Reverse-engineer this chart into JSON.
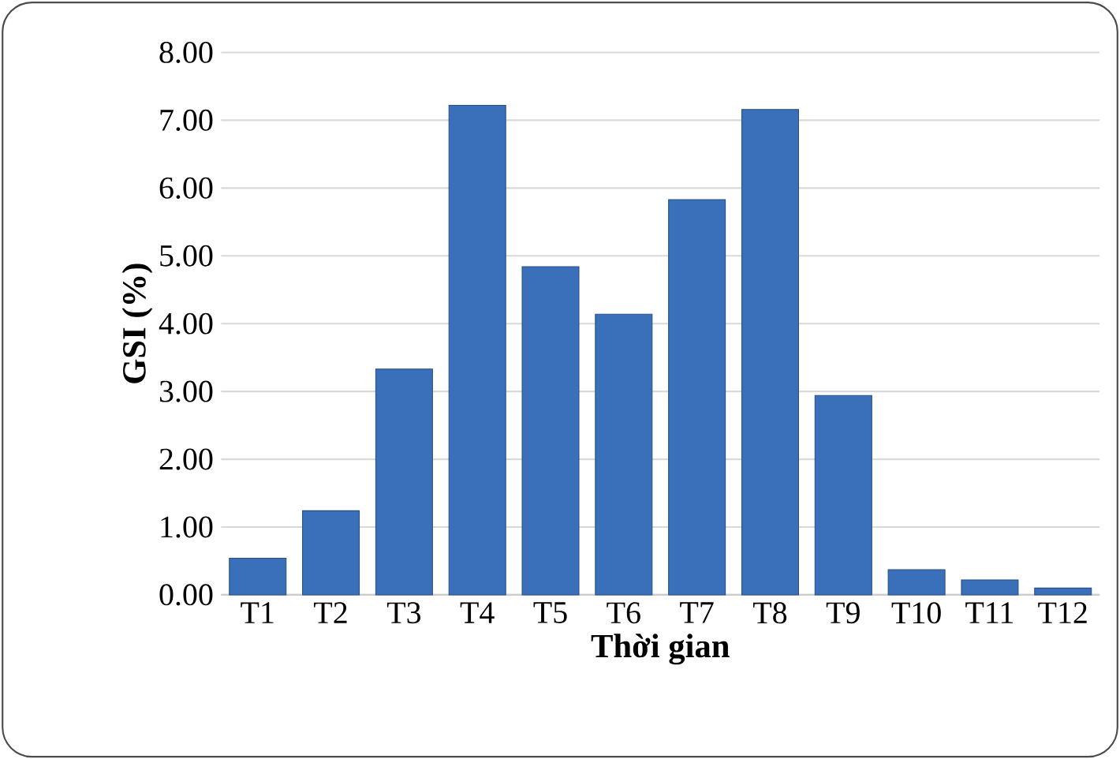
{
  "chart_data": {
    "type": "bar",
    "xlabel": "Thời gian",
    "ylabel": "GSI (%)",
    "categories": [
      "T1",
      "T2",
      "T3",
      "T4",
      "T5",
      "T6",
      "T7",
      "T8",
      "T9",
      "T10",
      "T11",
      "T12"
    ],
    "values": [
      0.54,
      1.24,
      3.33,
      7.22,
      4.84,
      4.14,
      5.83,
      7.16,
      2.94,
      0.37,
      0.22,
      0.1
    ],
    "color": "#3a70b9",
    "ylim": [
      0,
      8
    ],
    "yticks": [
      {
        "value": 0,
        "label": "0.00"
      },
      {
        "value": 1,
        "label": "1.00"
      },
      {
        "value": 2,
        "label": "2.00"
      },
      {
        "value": 3,
        "label": "3.00"
      },
      {
        "value": 4,
        "label": "4.00"
      },
      {
        "value": 5,
        "label": "5.00"
      },
      {
        "value": 6,
        "label": "6.00"
      },
      {
        "value": 7,
        "label": "7.00"
      },
      {
        "value": 8,
        "label": "8.00"
      }
    ],
    "grid": "y"
  }
}
